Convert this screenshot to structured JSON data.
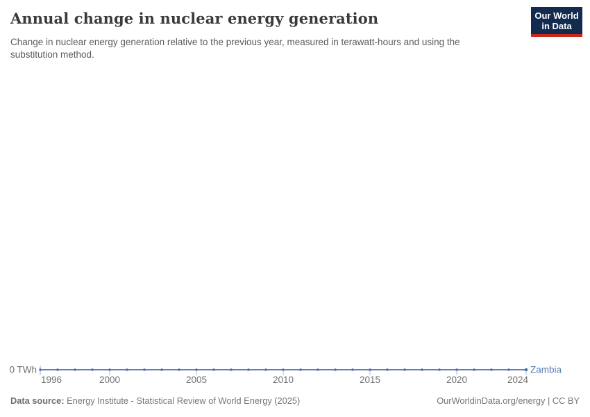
{
  "header": {
    "title": "Annual change in nuclear energy generation",
    "subtitle": "Change in nuclear energy generation relative to the previous year, measured in terawatt-hours and using the substitution method.",
    "logo": {
      "line1": "Our World",
      "line2": "in Data",
      "bg_color": "#122B4F",
      "accent_color": "#CE261B"
    }
  },
  "chart_data": {
    "type": "line",
    "title": "Annual change in nuclear energy generation",
    "xlabel": "",
    "ylabel": "",
    "xlim": [
      1996,
      2024
    ],
    "ylim": [
      0,
      0
    ],
    "grid": false,
    "legend_position": "end-of-line",
    "y_axis_tick_label": "0 TWh",
    "x_ticks": [
      1996,
      2000,
      2005,
      2010,
      2015,
      2020,
      2024
    ],
    "x": [
      1996,
      1997,
      1998,
      1999,
      2000,
      2001,
      2002,
      2003,
      2004,
      2005,
      2006,
      2007,
      2008,
      2009,
      2010,
      2011,
      2012,
      2013,
      2014,
      2015,
      2016,
      2017,
      2018,
      2019,
      2020,
      2021,
      2022,
      2023,
      2024
    ],
    "series": [
      {
        "name": "Zambia",
        "color": "#4C70AC",
        "values": [
          0,
          0,
          0,
          0,
          0,
          0,
          0,
          0,
          0,
          0,
          0,
          0,
          0,
          0,
          0,
          0,
          0,
          0,
          0,
          0,
          0,
          0,
          0,
          0,
          0,
          0,
          0,
          0,
          0
        ]
      }
    ],
    "entity_label": "Zambia",
    "entity_label_color": "#567CB2",
    "axis": {
      "tick_color": "#A6B8D0",
      "label_color": "#6e6e6e"
    }
  },
  "footer": {
    "data_source_label": "Data source:",
    "data_source": " Energy Institute - Statistical Review of World Energy (2025)",
    "attribution": "OurWorldinData.org/energy | CC BY"
  }
}
